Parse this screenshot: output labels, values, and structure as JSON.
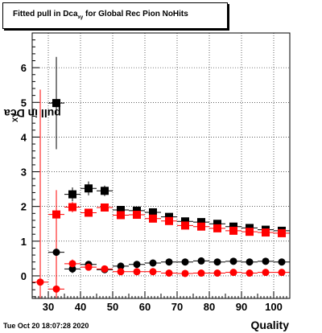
{
  "title": {
    "main": "Fitted pull in Dca",
    "sub": "xy",
    "rest": " for Global Rec Pion NoHits"
  },
  "ylabel": {
    "main": "pull in Dca",
    "sub": "XY"
  },
  "xlabel": "Quality",
  "timestamp": "Tue Oct 20 18:07:28 2020",
  "chart_data": {
    "type": "scatter",
    "title": "Fitted pull in Dca_xy for Global Rec Pion NoHits",
    "xlabel": "Quality",
    "ylabel": "pull in Dca_XY",
    "xlim": [
      25,
      105
    ],
    "ylim": [
      -0.65,
      7.0
    ],
    "xticks": [
      30,
      40,
      50,
      60,
      70,
      80,
      90,
      100
    ],
    "yticks": [
      0,
      1,
      2,
      3,
      4,
      5,
      6
    ],
    "grid": true,
    "bin_halfwidth": 2.5,
    "series": [
      {
        "color": "#000000",
        "marker": "square",
        "points": [
          {
            "x": 32.5,
            "y": 4.98,
            "err": 1.33
          },
          {
            "x": 37.5,
            "y": 2.35,
            "err": 0.2
          },
          {
            "x": 42.5,
            "y": 2.52,
            "err": 0.2
          },
          {
            "x": 47.5,
            "y": 2.45,
            "err": 0.15
          },
          {
            "x": 52.5,
            "y": 1.9,
            "err": 0.08
          },
          {
            "x": 57.5,
            "y": 1.88,
            "err": 0.07
          },
          {
            "x": 62.5,
            "y": 1.83,
            "err": 0.06
          },
          {
            "x": 67.5,
            "y": 1.7,
            "err": 0.05
          },
          {
            "x": 72.5,
            "y": 1.57,
            "err": 0.05
          },
          {
            "x": 77.5,
            "y": 1.55,
            "err": 0.04
          },
          {
            "x": 82.5,
            "y": 1.5,
            "err": 0.04
          },
          {
            "x": 87.5,
            "y": 1.42,
            "err": 0.04
          },
          {
            "x": 92.5,
            "y": 1.38,
            "err": 0.03
          },
          {
            "x": 97.5,
            "y": 1.33,
            "err": 0.03
          },
          {
            "x": 102.5,
            "y": 1.3,
            "err": 0.03
          }
        ]
      },
      {
        "color": "#ff0000",
        "marker": "square",
        "points": [
          {
            "x": 32.5,
            "y": 1.77,
            "err": 0.63
          },
          {
            "x": 37.5,
            "y": 1.98,
            "err": 0.15
          },
          {
            "x": 42.5,
            "y": 1.82,
            "err": 0.1
          },
          {
            "x": 47.5,
            "y": 1.97,
            "err": 0.1
          },
          {
            "x": 52.5,
            "y": 1.75,
            "err": 0.07
          },
          {
            "x": 57.5,
            "y": 1.76,
            "err": 0.06
          },
          {
            "x": 62.5,
            "y": 1.65,
            "err": 0.05
          },
          {
            "x": 67.5,
            "y": 1.58,
            "err": 0.05
          },
          {
            "x": 72.5,
            "y": 1.45,
            "err": 0.04
          },
          {
            "x": 77.5,
            "y": 1.42,
            "err": 0.04
          },
          {
            "x": 82.5,
            "y": 1.37,
            "err": 0.04
          },
          {
            "x": 87.5,
            "y": 1.3,
            "err": 0.03
          },
          {
            "x": 92.5,
            "y": 1.27,
            "err": 0.03
          },
          {
            "x": 97.5,
            "y": 1.25,
            "err": 0.03
          },
          {
            "x": 102.5,
            "y": 1.23,
            "err": 0.03
          }
        ]
      },
      {
        "color": "#000000",
        "marker": "circle",
        "points": [
          {
            "x": 32.5,
            "y": 0.68,
            "err": 0.33
          },
          {
            "x": 37.5,
            "y": 0.2,
            "err": 0.12
          },
          {
            "x": 42.5,
            "y": 0.33,
            "err": 0.1
          },
          {
            "x": 47.5,
            "y": 0.18,
            "err": 0.08
          },
          {
            "x": 52.5,
            "y": 0.28,
            "err": 0.06
          },
          {
            "x": 57.5,
            "y": 0.33,
            "err": 0.05
          },
          {
            "x": 62.5,
            "y": 0.37,
            "err": 0.05
          },
          {
            "x": 67.5,
            "y": 0.4,
            "err": 0.04
          },
          {
            "x": 72.5,
            "y": 0.4,
            "err": 0.04
          },
          {
            "x": 77.5,
            "y": 0.43,
            "err": 0.04
          },
          {
            "x": 82.5,
            "y": 0.4,
            "err": 0.03
          },
          {
            "x": 87.5,
            "y": 0.42,
            "err": 0.03
          },
          {
            "x": 92.5,
            "y": 0.4,
            "err": 0.03
          },
          {
            "x": 97.5,
            "y": 0.42,
            "err": 0.03
          },
          {
            "x": 102.5,
            "y": 0.4,
            "err": 0.03
          }
        ]
      },
      {
        "color": "#ff0000",
        "marker": "circle",
        "points": [
          {
            "x": 27.5,
            "y": -0.18,
            "err": 5.55
          },
          {
            "x": 32.5,
            "y": -0.38,
            "err": 2.85
          },
          {
            "x": 37.5,
            "y": 0.35,
            "err": 0.12
          },
          {
            "x": 42.5,
            "y": 0.25,
            "err": 0.1
          },
          {
            "x": 47.5,
            "y": 0.2,
            "err": 0.08
          },
          {
            "x": 52.5,
            "y": 0.12,
            "err": 0.05
          },
          {
            "x": 57.5,
            "y": 0.12,
            "err": 0.05
          },
          {
            "x": 62.5,
            "y": 0.12,
            "err": 0.04
          },
          {
            "x": 67.5,
            "y": 0.08,
            "err": 0.04
          },
          {
            "x": 72.5,
            "y": 0.07,
            "err": 0.03
          },
          {
            "x": 77.5,
            "y": 0.08,
            "err": 0.03
          },
          {
            "x": 82.5,
            "y": 0.08,
            "err": 0.03
          },
          {
            "x": 87.5,
            "y": 0.1,
            "err": 0.03
          },
          {
            "x": 92.5,
            "y": 0.08,
            "err": 0.03
          },
          {
            "x": 97.5,
            "y": 0.1,
            "err": 0.03
          },
          {
            "x": 102.5,
            "y": 0.1,
            "err": 0.03
          }
        ]
      }
    ]
  }
}
